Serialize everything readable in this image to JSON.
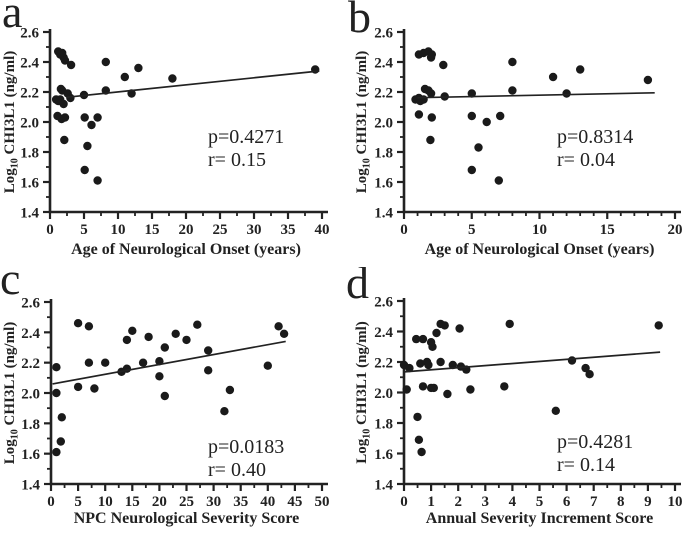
{
  "figure": {
    "background": "#ffffff",
    "ink_color": "#222222",
    "point_color": "#1a1a1a"
  },
  "chart_data": [
    {
      "panel_label": "a",
      "type": "scatter",
      "title": "",
      "xlabel": "Age of Neurological Onset (years)",
      "ylabel": {
        "prefix": "Log",
        "sub": "10",
        "rest": " CHI3L1 (ng/ml)"
      },
      "xlim": [
        0,
        40
      ],
      "ylim": [
        1.4,
        2.6
      ],
      "xticks": [
        0,
        5,
        10,
        15,
        20,
        25,
        30,
        35,
        40
      ],
      "yticks": [
        1.4,
        1.6,
        1.8,
        2.0,
        2.2,
        2.4,
        2.6
      ],
      "x_minor_step": 2.5,
      "y_minor_step": 0.1,
      "annotation": {
        "p": "p=0.4271",
        "r": "r= 0.15"
      },
      "regression_line": {
        "x": [
          2.4,
          39.6
        ],
        "y": [
          2.165,
          2.34
        ]
      },
      "points": [
        [
          1.2,
          2.47
        ],
        [
          1.5,
          2.45
        ],
        [
          1.8,
          2.46
        ],
        [
          2.0,
          2.43
        ],
        [
          2.2,
          2.41
        ],
        [
          3.1,
          2.38
        ],
        [
          8.2,
          2.4
        ],
        [
          11,
          2.3
        ],
        [
          13,
          2.36
        ],
        [
          18,
          2.29
        ],
        [
          39,
          2.35
        ],
        [
          1.6,
          2.22
        ],
        [
          1.8,
          2.21
        ],
        [
          2.6,
          2.19
        ],
        [
          3.0,
          2.16
        ],
        [
          5.0,
          2.18
        ],
        [
          8.2,
          2.21
        ],
        [
          12,
          2.19
        ],
        [
          0.9,
          2.15
        ],
        [
          1.2,
          2.14
        ],
        [
          1.5,
          2.15
        ],
        [
          2.0,
          2.12
        ],
        [
          1.1,
          2.04
        ],
        [
          1.7,
          2.02
        ],
        [
          2.2,
          2.03
        ],
        [
          5.1,
          2.03
        ],
        [
          6.1,
          1.98
        ],
        [
          7.0,
          2.03
        ],
        [
          2.1,
          1.88
        ],
        [
          5.5,
          1.84
        ],
        [
          5.1,
          1.68
        ],
        [
          7.0,
          1.61
        ]
      ]
    },
    {
      "panel_label": "b",
      "type": "scatter",
      "title": "",
      "xlabel": "Age of Neurological Onset (years)",
      "ylabel": {
        "prefix": "Log",
        "sub": "10",
        "rest": " CHI3L1 (ng/ml)"
      },
      "xlim": [
        0,
        20
      ],
      "ylim": [
        1.4,
        2.6
      ],
      "xticks": [
        0,
        5,
        10,
        15,
        20
      ],
      "yticks": [
        1.4,
        1.6,
        1.8,
        2.0,
        2.2,
        2.4,
        2.6
      ],
      "x_minor_step": 1,
      "y_minor_step": 0.1,
      "annotation": {
        "p": "p=0.8314",
        "r": "r= 0.04"
      },
      "regression_line": {
        "x": [
          1.0,
          18.5
        ],
        "y": [
          2.162,
          2.195
        ]
      },
      "points": [
        [
          1.1,
          2.45
        ],
        [
          1.45,
          2.46
        ],
        [
          1.8,
          2.47
        ],
        [
          2.05,
          2.45
        ],
        [
          2.0,
          2.43
        ],
        [
          2.9,
          2.38
        ],
        [
          8.0,
          2.4
        ],
        [
          11,
          2.3
        ],
        [
          13,
          2.35
        ],
        [
          18,
          2.28
        ],
        [
          1.55,
          2.22
        ],
        [
          1.8,
          2.21
        ],
        [
          2.0,
          2.19
        ],
        [
          0.85,
          2.15
        ],
        [
          1.1,
          2.16
        ],
        [
          1.2,
          2.14
        ],
        [
          1.45,
          2.15
        ],
        [
          3.0,
          2.17
        ],
        [
          5.0,
          2.19
        ],
        [
          8.0,
          2.21
        ],
        [
          12,
          2.19
        ],
        [
          1.1,
          2.05
        ],
        [
          2.05,
          2.03
        ],
        [
          5.0,
          2.04
        ],
        [
          6.1,
          2.0
        ],
        [
          7.1,
          2.04
        ],
        [
          1.95,
          1.88
        ],
        [
          5.5,
          1.83
        ],
        [
          5.0,
          1.68
        ],
        [
          7.0,
          1.61
        ]
      ]
    },
    {
      "panel_label": "c",
      "type": "scatter",
      "title": "",
      "xlabel": "NPC Neurological Severity Score",
      "ylabel": {
        "prefix": "Log",
        "sub": "10",
        "rest": " CHI3L1 (ng/ml)"
      },
      "xlim": [
        0,
        50
      ],
      "ylim": [
        1.4,
        2.6
      ],
      "xticks": [
        0,
        5,
        10,
        15,
        20,
        25,
        30,
        35,
        40,
        45,
        50
      ],
      "yticks": [
        1.4,
        1.6,
        1.8,
        2.0,
        2.2,
        2.4,
        2.6
      ],
      "x_minor_step": 2.5,
      "y_minor_step": 0.1,
      "annotation": {
        "p": "p=0.0183",
        "r": "r= 0.40"
      },
      "regression_line": {
        "x": [
          0.3,
          43.3
        ],
        "y": [
          2.06,
          2.34
        ]
      },
      "points": [
        [
          1,
          2.17
        ],
        [
          1,
          2.0
        ],
        [
          2,
          1.84
        ],
        [
          1.8,
          1.68
        ],
        [
          1,
          1.61
        ],
        [
          5,
          2.46
        ],
        [
          7,
          2.44
        ],
        [
          5,
          2.04
        ],
        [
          7,
          2.2
        ],
        [
          8,
          2.03
        ],
        [
          10,
          2.2
        ],
        [
          13,
          2.14
        ],
        [
          14,
          2.16
        ],
        [
          14,
          2.35
        ],
        [
          15,
          2.41
        ],
        [
          17,
          2.2
        ],
        [
          18,
          2.37
        ],
        [
          20,
          2.21
        ],
        [
          20,
          2.11
        ],
        [
          21,
          2.3
        ],
        [
          21,
          1.98
        ],
        [
          23,
          2.39
        ],
        [
          25,
          2.35
        ],
        [
          27,
          2.45
        ],
        [
          29,
          2.28
        ],
        [
          29,
          2.15
        ],
        [
          32,
          1.88
        ],
        [
          33,
          2.02
        ],
        [
          40,
          2.18
        ],
        [
          42,
          2.44
        ],
        [
          43,
          2.39
        ]
      ]
    },
    {
      "panel_label": "d",
      "type": "scatter",
      "title": "",
      "xlabel": "Annual Severity Increment Score",
      "ylabel": {
        "prefix": "Log",
        "sub": "10",
        "rest": " CHI3L1 (ng/ml)"
      },
      "xlim": [
        0,
        10
      ],
      "ylim": [
        1.4,
        2.6
      ],
      "xticks": [
        0,
        1,
        2,
        3,
        4,
        5,
        6,
        7,
        8,
        9,
        10
      ],
      "yticks": [
        1.4,
        1.6,
        1.8,
        2.0,
        2.2,
        2.4,
        2.6
      ],
      "x_minor_step": 0.5,
      "y_minor_step": 0.1,
      "annotation": {
        "p": "p=0.4281",
        "r": "r= 0.14"
      },
      "regression_line": {
        "x": [
          0,
          9.45
        ],
        "y": [
          2.135,
          2.265
        ]
      },
      "points": [
        [
          0,
          2.18
        ],
        [
          0.1,
          2.02
        ],
        [
          0.2,
          2.16
        ],
        [
          0.45,
          2.35
        ],
        [
          0.7,
          2.35
        ],
        [
          0.5,
          1.84
        ],
        [
          0.55,
          1.69
        ],
        [
          0.65,
          1.61
        ],
        [
          0.6,
          2.19
        ],
        [
          0.7,
          2.04
        ],
        [
          0.85,
          2.2
        ],
        [
          0.9,
          2.18
        ],
        [
          1.0,
          2.33
        ],
        [
          1.05,
          2.3
        ],
        [
          1.0,
          2.03
        ],
        [
          1.1,
          2.03
        ],
        [
          1.2,
          2.39
        ],
        [
          1.35,
          2.45
        ],
        [
          1.5,
          2.44
        ],
        [
          1.35,
          2.2
        ],
        [
          1.6,
          1.99
        ],
        [
          1.8,
          2.18
        ],
        [
          2.05,
          2.42
        ],
        [
          2.1,
          2.17
        ],
        [
          2.3,
          2.15
        ],
        [
          2.45,
          2.02
        ],
        [
          3.7,
          2.04
        ],
        [
          3.9,
          2.45
        ],
        [
          5.6,
          1.88
        ],
        [
          6.2,
          2.21
        ],
        [
          6.7,
          2.16
        ],
        [
          6.85,
          2.12
        ],
        [
          9.4,
          2.44
        ]
      ]
    }
  ]
}
